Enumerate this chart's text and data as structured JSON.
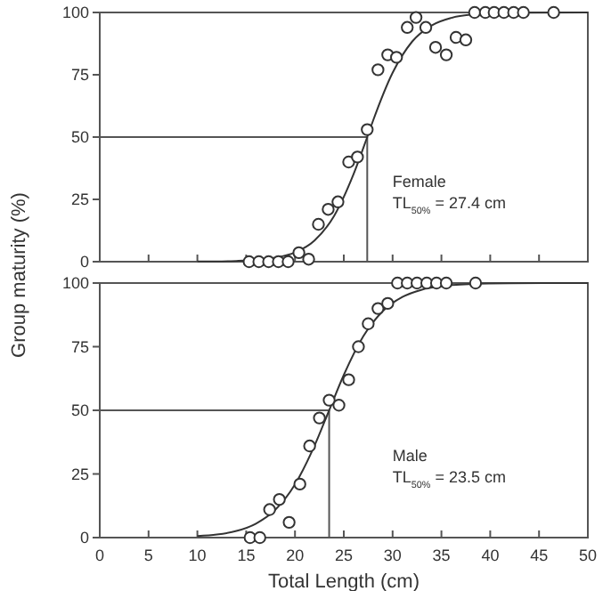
{
  "chart_data": [
    {
      "type": "scatter",
      "ylabel": "Group maturity (%)",
      "xlim": [
        0,
        50
      ],
      "ylim": [
        0,
        100
      ],
      "yticks": [
        0,
        25,
        50,
        75,
        100
      ],
      "xticks": [
        0,
        5,
        10,
        15,
        20,
        25,
        30,
        35,
        40,
        45,
        50
      ],
      "tick_labels": "y",
      "grid": false,
      "annotations": [
        "Female",
        "TL$_{50%}$ = 27.4 cm"
      ],
      "ref_lines": [
        {
          "axis": "y",
          "value": 50,
          "label": null
        },
        {
          "axis": "x",
          "value": 27.4,
          "label": null
        }
      ],
      "series": [
        {
          "marker": "circle",
          "color": "#333333",
          "x": [
            15.3,
            16.3,
            17.3,
            18.3,
            19.3,
            20.4,
            21.4,
            22.4,
            23.4,
            24.4,
            25.5,
            26.4,
            27.4,
            28.5,
            29.5,
            30.4,
            31.5,
            32.4,
            33.4,
            34.4,
            35.5,
            36.5,
            37.5,
            38.4,
            39.5,
            40.4,
            41.4,
            42.4,
            43.4,
            46.5
          ],
          "values": [
            0,
            0,
            0,
            0,
            0,
            3.6,
            1,
            15,
            21,
            24,
            40,
            42,
            53,
            77,
            83,
            82,
            94,
            98,
            94,
            86,
            83,
            90,
            89,
            100,
            100,
            100,
            100,
            100,
            100,
            100
          ]
        },
        {
          "type": "line",
          "marker": "none",
          "color": "#333333",
          "x": [
            10,
            12,
            14,
            16,
            18,
            20,
            22,
            24,
            26,
            27.4,
            28,
            30,
            32,
            34,
            36,
            38,
            40,
            44,
            50
          ],
          "values": [
            0.1,
            0.1,
            0.3,
            0.7,
            1.6,
            3.7,
            8.5,
            18.3,
            35.1,
            50,
            56.6,
            75.8,
            88.3,
            94.8,
            97.8,
            99.1,
            99.6,
            99.9,
            100
          ]
        }
      ]
    },
    {
      "type": "scatter",
      "xlabel": "Total Length (cm)",
      "xlim": [
        0,
        50
      ],
      "ylim": [
        0,
        100
      ],
      "yticks": [
        0,
        25,
        50,
        75,
        100
      ],
      "xticks": [
        0,
        5,
        10,
        15,
        20,
        25,
        30,
        35,
        40,
        45,
        50
      ],
      "grid": false,
      "annotations": [
        "Male",
        "TL$_{50%}$ = 23.5 cm"
      ],
      "ref_lines": [
        {
          "axis": "y",
          "value": 50,
          "label": null
        },
        {
          "axis": "x",
          "value": 23.5,
          "label": null
        }
      ],
      "series": [
        {
          "marker": "circle",
          "color": "#333333",
          "x": [
            15.4,
            16.4,
            17.4,
            18.4,
            19.4,
            20.5,
            21.5,
            22.5,
            23.5,
            24.5,
            25.5,
            26.5,
            27.5,
            28.5,
            29.5,
            30.5,
            31.5,
            32.5,
            33.5,
            34.5,
            35.5,
            38.5
          ],
          "values": [
            0,
            0,
            11,
            15,
            6,
            21,
            36,
            47,
            54,
            52,
            62,
            75,
            84,
            90,
            92,
            100,
            100,
            100,
            100,
            100,
            100,
            100
          ]
        },
        {
          "type": "line",
          "marker": "none",
          "color": "#333333",
          "x": [
            10,
            12,
            14,
            16,
            18,
            20,
            22,
            23.5,
            25,
            27,
            29,
            31,
            33,
            35,
            38,
            42,
            50
          ],
          "values": [
            0.6,
            1.2,
            2.6,
            5.5,
            11,
            20.9,
            36.1,
            50,
            63.9,
            79.1,
            89,
            94.5,
            97.4,
            98.8,
            99.6,
            99.9,
            100
          ]
        }
      ]
    }
  ]
}
